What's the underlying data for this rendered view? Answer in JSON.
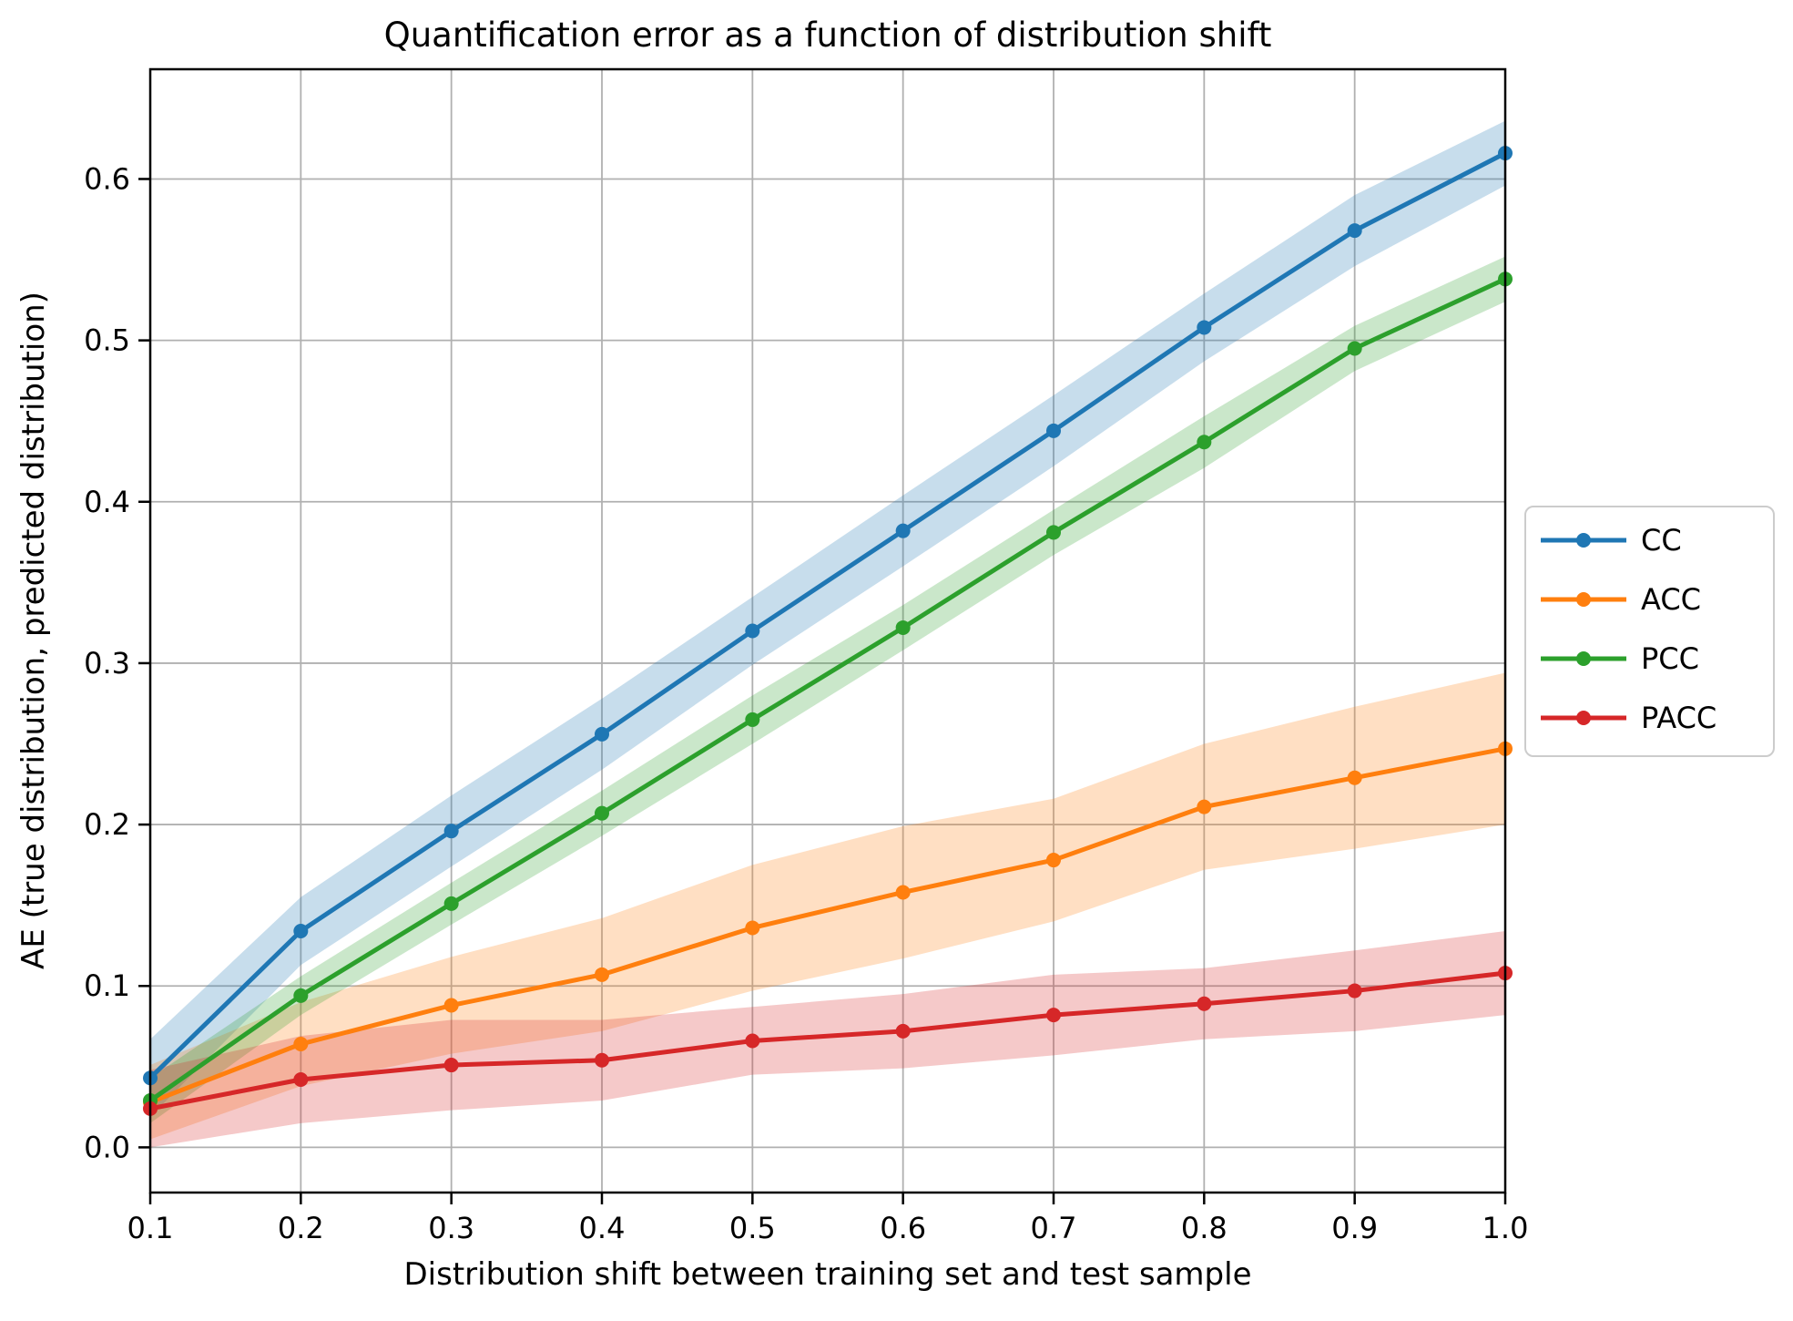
{
  "title": "Quantification error as a function of distribution shift",
  "legend": {
    "entries": [
      "CC",
      "ACC",
      "PCC",
      "PACC"
    ]
  },
  "chart_data": {
    "type": "line",
    "title": "Quantification error as a function of distribution shift",
    "xlabel": "Distribution shift between training set and test sample",
    "ylabel": "AE (true distribution, predicted distribution)",
    "x": [
      0.1,
      0.2,
      0.3,
      0.4,
      0.5,
      0.6,
      0.7,
      0.8,
      0.9,
      1.0
    ],
    "x_tick_labels": [
      "0.1",
      "0.2",
      "0.3",
      "0.4",
      "0.5",
      "0.6",
      "0.7",
      "0.8",
      "0.9",
      "1.0"
    ],
    "y_ticks": [
      0.0,
      0.1,
      0.2,
      0.3,
      0.4,
      0.5,
      0.6
    ],
    "y_tick_labels": [
      "0.0",
      "0.1",
      "0.2",
      "0.3",
      "0.4",
      "0.5",
      "0.6"
    ],
    "xlim": [
      0.1,
      1.0
    ],
    "ylim": [
      -0.028,
      0.668
    ],
    "grid": true,
    "grid_color": "#b0b0b0",
    "spine_color": "#000000",
    "band_alpha": 0.25,
    "legend_position": "outside right, vertically centered",
    "series": [
      {
        "name": "CC",
        "color": "#1f77b4",
        "values": [
          0.043,
          0.134,
          0.196,
          0.256,
          0.32,
          0.382,
          0.444,
          0.508,
          0.568,
          0.616
        ],
        "band_halfwidth": [
          0.024,
          0.021,
          0.022,
          0.022,
          0.021,
          0.022,
          0.022,
          0.021,
          0.022,
          0.02
        ]
      },
      {
        "name": "ACC",
        "color": "#ff7f0e",
        "values": [
          0.028,
          0.064,
          0.088,
          0.107,
          0.136,
          0.158,
          0.178,
          0.211,
          0.229,
          0.247
        ],
        "band_halfwidth": [
          0.023,
          0.026,
          0.03,
          0.035,
          0.039,
          0.041,
          0.038,
          0.039,
          0.044,
          0.047
        ]
      },
      {
        "name": "PCC",
        "color": "#2ca02c",
        "values": [
          0.029,
          0.094,
          0.151,
          0.207,
          0.265,
          0.322,
          0.381,
          0.437,
          0.495,
          0.538
        ],
        "band_halfwidth": [
          0.014,
          0.012,
          0.013,
          0.014,
          0.015,
          0.014,
          0.014,
          0.016,
          0.014,
          0.014
        ]
      },
      {
        "name": "PACC",
        "color": "#d62728",
        "values": [
          0.024,
          0.042,
          0.051,
          0.054,
          0.066,
          0.072,
          0.082,
          0.089,
          0.097,
          0.108
        ],
        "band_halfwidth": [
          0.024,
          0.027,
          0.028,
          0.025,
          0.021,
          0.023,
          0.025,
          0.022,
          0.025,
          0.026
        ]
      }
    ]
  }
}
